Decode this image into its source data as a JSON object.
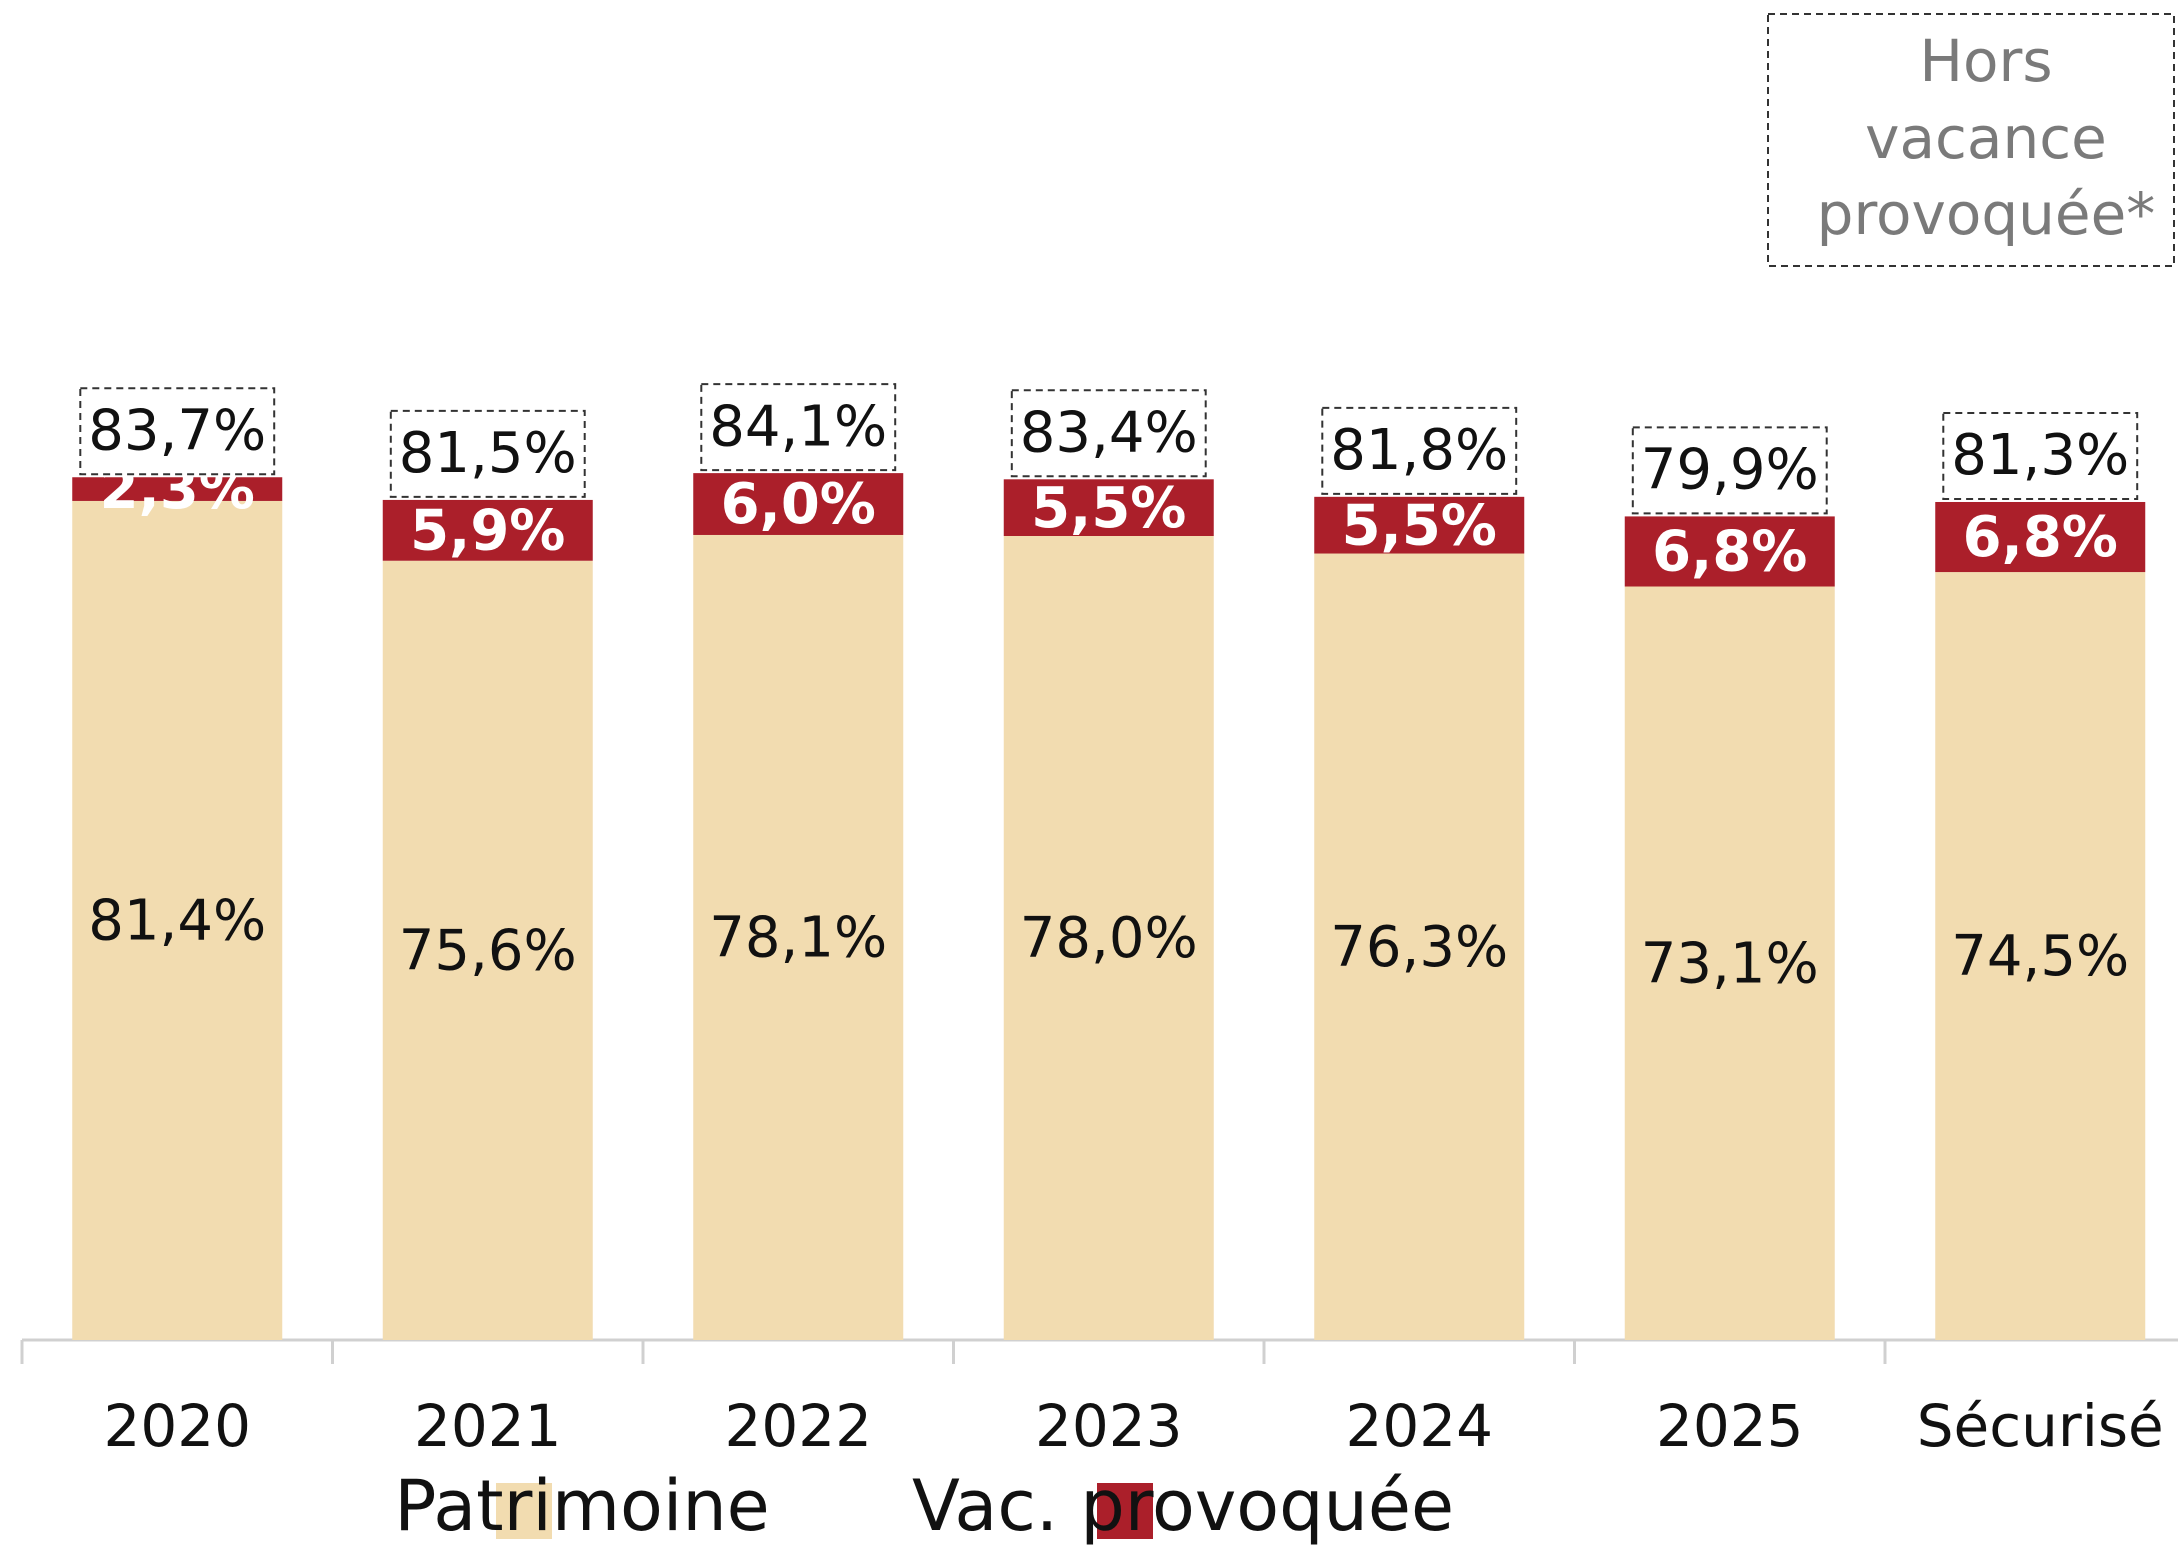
{
  "chart_data": {
    "type": "stacked_bar",
    "categories": [
      "2020",
      "2021",
      "2022",
      "2023",
      "2024",
      "2025",
      "Sécurisé"
    ],
    "series": [
      {
        "name": "Patrimoine",
        "color": "#f2dcb0",
        "values": [
          81.4,
          75.6,
          78.1,
          78.0,
          76.3,
          73.1,
          74.5
        ],
        "value_labels": [
          "81,4%",
          "75,6%",
          "78,1%",
          "78,0%",
          "76,3%",
          "73,1%",
          "74,5%"
        ]
      },
      {
        "name": "Vac. provoquée",
        "color": "#ab1f2a",
        "values": [
          2.3,
          5.9,
          6.0,
          5.5,
          5.5,
          6.8,
          6.8
        ],
        "value_labels": [
          "2,3%",
          "5,9%",
          "6,0%",
          "5,5%",
          "5,5%",
          "6,8%",
          "6,8%"
        ]
      }
    ],
    "totals": [
      83.7,
      81.5,
      84.1,
      83.4,
      81.8,
      79.9,
      81.3
    ],
    "total_labels": [
      "83,7%",
      "81,5%",
      "84,1%",
      "83,4%",
      "81,8%",
      "79,9%",
      "81,3%"
    ],
    "annotation_lines": [
      "Hors",
      "vacance",
      "provoquée*"
    ],
    "ylim": [
      0,
      130
    ]
  }
}
